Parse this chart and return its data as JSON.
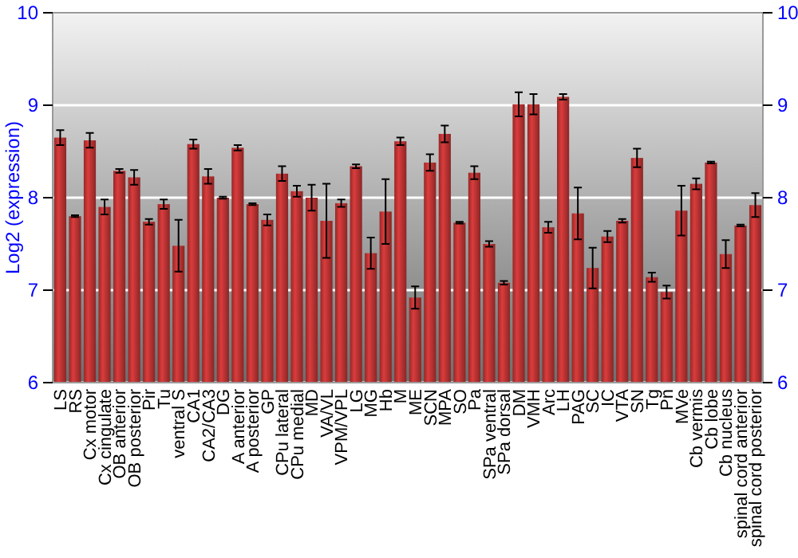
{
  "chart_data": {
    "type": "bar",
    "ylabel": "Log2 (expression)",
    "categories": [
      "LS",
      "RS",
      "Cx motor",
      "Cx cingulate",
      "OB anterior",
      "OB posterior",
      "Pir",
      "Tu",
      "ventral S",
      "CA1",
      "CA2/CA3",
      "DG",
      "A anterior",
      "A posterior",
      "GP",
      "CPu lateral",
      "CPu medial",
      "MD",
      "VA/VL",
      "VPM/VPL",
      "LG",
      "MG",
      "Hb",
      "M",
      "ME",
      "SCN",
      "MPA",
      "SO",
      "Pa",
      "SPa ventral",
      "SPa dorsal",
      "DM",
      "VMH",
      "Arc",
      "LH",
      "PAG",
      "SC",
      "IC",
      "VTA",
      "SN",
      "Tg",
      "Pn",
      "MVe",
      "Cb vermis",
      "Cb lobe",
      "Cb nucleus",
      "spinal cord anterior",
      "spinal cord posterior"
    ],
    "series": [
      {
        "color": "#b83232",
        "values": [
          8.65,
          7.8,
          8.62,
          7.9,
          8.29,
          8.22,
          7.74,
          7.93,
          7.48,
          8.58,
          8.23,
          8.0,
          8.54,
          7.93,
          7.76,
          8.26,
          8.07,
          8.0,
          7.75,
          7.94,
          8.34,
          7.4,
          7.85,
          8.61,
          6.92,
          8.38,
          8.69,
          7.73,
          8.27,
          7.5,
          7.08,
          9.01,
          9.01,
          7.68,
          9.09,
          7.83,
          7.24,
          7.58,
          7.75,
          8.43,
          7.14,
          6.98,
          7.86,
          8.15,
          8.38,
          7.39,
          7.7,
          7.92
        ],
        "errors": [
          0.08,
          0.01,
          0.08,
          0.08,
          0.02,
          0.08,
          0.03,
          0.05,
          0.28,
          0.05,
          0.08,
          0.01,
          0.03,
          0.01,
          0.06,
          0.08,
          0.06,
          0.14,
          0.4,
          0.04,
          0.02,
          0.17,
          0.35,
          0.04,
          0.12,
          0.09,
          0.09,
          0.01,
          0.07,
          0.03,
          0.02,
          0.13,
          0.11,
          0.06,
          0.03,
          0.28,
          0.22,
          0.06,
          0.02,
          0.1,
          0.05,
          0.07,
          0.27,
          0.06,
          0.01,
          0.15,
          0.01,
          0.13
        ]
      }
    ],
    "ylim": [
      6,
      10
    ],
    "yticks": [
      6,
      7,
      8,
      9,
      10
    ],
    "y2lim": [
      6,
      10
    ],
    "y2ticks": [
      6,
      7,
      8,
      9,
      10
    ],
    "grid": "y"
  }
}
